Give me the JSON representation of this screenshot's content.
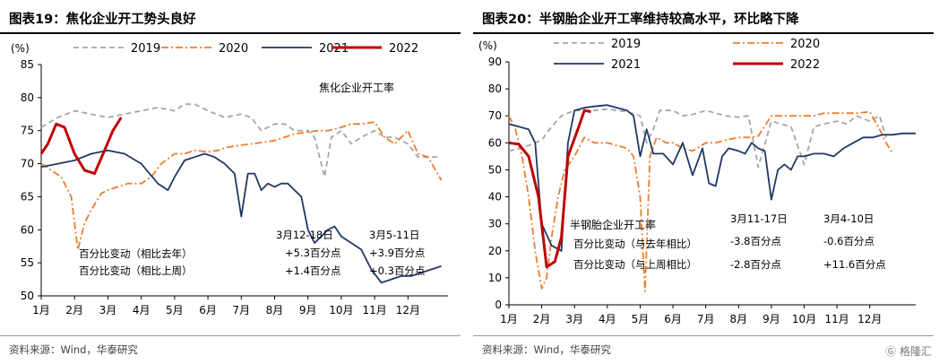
{
  "charts": [
    {
      "title": "图表19：焦化企业开工势头良好",
      "source": "资料来源：Wind，华泰研究",
      "chart_data": {
        "type": "line",
        "ylabel": "(%)",
        "ylim": [
          50,
          85
        ],
        "yticks": [
          "50",
          "55",
          "60",
          "65",
          "70",
          "75",
          "80",
          "85"
        ],
        "xlim": [
          1,
          13.2
        ],
        "xticks": [
          "1月",
          "2月",
          "3月",
          "4月",
          "5月",
          "6月",
          "7月",
          "8月",
          "9月",
          "10月",
          "11月",
          "12月"
        ],
        "grid": false,
        "legend_position": "top",
        "series": [
          {
            "name": "2019",
            "color": "#a6a6a6",
            "style": "dashed",
            "x": [
              1,
              1.5,
              2,
              2.5,
              3,
              3.5,
              4,
              4.5,
              5,
              5.3,
              5.6,
              6,
              6.5,
              7,
              7.3,
              7.6,
              8,
              8.3,
              8.6,
              9,
              9.2,
              9.5,
              9.7,
              10,
              10.3,
              10.6,
              11,
              11.3,
              11.6,
              12,
              12.3,
              12.6,
              12.9
            ],
            "y": [
              75.5,
              77,
              78,
              77.5,
              77,
              77.5,
              78,
              78.5,
              78,
              79,
              79,
              78,
              77,
              77.5,
              77,
              75,
              76,
              76,
              75,
              75,
              74,
              68,
              74,
              75,
              73,
              74,
              75,
              74,
              74,
              73,
              71,
              71,
              71
            ]
          },
          {
            "name": "2020",
            "color": "#ed7d31",
            "style": "dashdot",
            "x": [
              1,
              1.3,
              1.6,
              1.9,
              2.1,
              2.3,
              2.5,
              2.8,
              3,
              3.3,
              3.6,
              4,
              4.3,
              4.6,
              5,
              5.3,
              5.6,
              6,
              6.3,
              6.6,
              7,
              7.3,
              7.6,
              8,
              8.3,
              8.6,
              9,
              9.3,
              9.6,
              10,
              10.3,
              10.6,
              11,
              11.3,
              11.6,
              12,
              12.3,
              12.6,
              13
            ],
            "y": [
              70,
              69,
              68,
              65,
              57,
              61,
              63,
              65.5,
              66,
              66.5,
              67,
              67,
              68,
              70,
              71.5,
              71.5,
              72,
              71.8,
              72,
              72.5,
              72.8,
              73,
              73.2,
              73.5,
              74,
              74.5,
              74.8,
              75,
              75,
              75.5,
              76,
              76,
              76.3,
              74,
              73,
              75,
              71.5,
              71,
              67.5
            ]
          },
          {
            "name": "2021",
            "color": "#203864",
            "style": "solid",
            "x": [
              1,
              1.5,
              2,
              2.5,
              3,
              3.5,
              4,
              4.5,
              4.8,
              5,
              5.3,
              5.6,
              5.9,
              6.2,
              6.5,
              6.8,
              7,
              7.2,
              7.4,
              7.6,
              7.8,
              8,
              8.2,
              8.4,
              8.6,
              8.8,
              9,
              9.2,
              9.4,
              9.6,
              9.8,
              10,
              10.3,
              10.6,
              10.9,
              11.2,
              11.5,
              11.8,
              12.1,
              12.4,
              12.7,
              13
            ],
            "y": [
              69.5,
              70,
              70.5,
              71.5,
              72,
              71.5,
              70,
              67,
              66,
              68,
              70.5,
              71,
              71.5,
              71,
              70,
              68.5,
              62,
              68.5,
              68.5,
              66,
              67,
              66.5,
              67,
              67,
              66,
              65,
              60,
              58,
              59,
              60,
              60.5,
              59,
              58,
              57,
              54,
              52,
              52.5,
              53,
              53,
              53.5,
              54,
              54.5
            ]
          },
          {
            "name": "2022",
            "color": "#c00000",
            "style": "solid",
            "width": 3,
            "x": [
              1,
              1.2,
              1.45,
              1.7,
              2,
              2.3,
              2.6,
              2.9,
              3.15,
              3.4
            ],
            "y": [
              71.5,
              73,
              76,
              75.5,
              71.5,
              69,
              68.5,
              72,
              75,
              77
            ]
          }
        ],
        "annotations": {
          "series_label": "焦化企业开工率",
          "row_labels": [
            "百分比变动（相比去年）",
            "百分比变动（相比上周）"
          ],
          "col_headers": [
            "3月12-18日",
            "3月5-11日"
          ],
          "values": [
            [
              "+5.3百分点",
              "+3.9百分点"
            ],
            [
              "+1.4百分点",
              "+0.3百分点"
            ]
          ]
        }
      }
    },
    {
      "title": "图表20：半钢胎企业开工率维持较高水平，环比略下降",
      "source": "资料来源：Wind，华泰研究",
      "chart_data": {
        "type": "line",
        "ylabel": "(%)",
        "ylim": [
          0,
          90
        ],
        "yticks": [
          "0",
          "10",
          "20",
          "30",
          "40",
          "50",
          "60",
          "70",
          "80",
          "90"
        ],
        "xlim": [
          1,
          13.4
        ],
        "xticks": [
          "1月",
          "2月",
          "3月",
          "4月",
          "5月",
          "6月",
          "7月",
          "8月",
          "9月",
          "10月",
          "11月",
          "12月"
        ],
        "grid": false,
        "legend_position": "top",
        "series": [
          {
            "name": "2019",
            "color": "#a6a6a6",
            "style": "dashed",
            "x": [
              1,
              1.3,
              1.6,
              2,
              2.3,
              2.6,
              3,
              3.3,
              3.6,
              4,
              4.3,
              4.6,
              5,
              5.2,
              5.4,
              5.6,
              6,
              6.3,
              6.6,
              7,
              7.3,
              7.6,
              8,
              8.3,
              8.6,
              9,
              9.3,
              9.6,
              10,
              10.3,
              10.6,
              11,
              11.3,
              11.6,
              12,
              12.3,
              12.5
            ],
            "y": [
              57,
              58,
              59,
              61,
              66,
              70,
              72,
              72,
              72,
              72.5,
              72,
              71.5,
              70,
              60,
              65,
              72,
              72,
              70,
              70.5,
              72,
              71,
              70,
              69.5,
              70,
              51,
              68,
              67,
              66,
              52,
              66,
              67,
              68,
              67,
              70,
              68,
              70,
              62
            ]
          },
          {
            "name": "2020",
            "color": "#ed7d31",
            "style": "dashdot",
            "x": [
              1,
              1.2,
              1.4,
              1.6,
              1.8,
              2,
              2.15,
              2.3,
              2.5,
              2.7,
              3,
              3.3,
              3.6,
              4,
              4.3,
              4.6,
              4.8,
              5,
              5.15,
              5.3,
              5.5,
              5.8,
              6,
              6.3,
              6.6,
              7,
              7.3,
              7.6,
              8,
              8.3,
              8.6,
              9,
              9.3,
              9.6,
              10,
              10.3,
              10.6,
              11,
              11.3,
              11.6,
              12,
              12.3,
              12.5,
              12.7
            ],
            "y": [
              70,
              65,
              55,
              40,
              20,
              6,
              10,
              25,
              40,
              50,
              55,
              62,
              60,
              60,
              59,
              58,
              55,
              40,
              5,
              55,
              62,
              60,
              60,
              58,
              57,
              60,
              60,
              61,
              62,
              62,
              62.5,
              70,
              70,
              70,
              70,
              70,
              71,
              71,
              71,
              71,
              71.5,
              65,
              60,
              56
            ]
          },
          {
            "name": "2021",
            "color": "#203864",
            "style": "solid",
            "x": [
              1,
              1.3,
              1.6,
              1.8,
              2,
              2.3,
              2.6,
              2.8,
              3,
              3.3,
              3.6,
              4,
              4.3,
              4.6,
              4.8,
              5,
              5.1,
              5.2,
              5.4,
              5.7,
              6,
              6.3,
              6.6,
              6.9,
              7.1,
              7.3,
              7.5,
              7.7,
              8,
              8.2,
              8.4,
              8.6,
              8.8,
              9,
              9.2,
              9.4,
              9.6,
              9.8,
              10,
              10.3,
              10.6,
              10.9,
              11.2,
              11.5,
              11.8,
              12.1,
              12.4,
              12.7,
              13,
              13.4
            ],
            "y": [
              67,
              66,
              65,
              60,
              30,
              22,
              20,
              60,
              72,
              73,
              73.5,
              74,
              73,
              72,
              70,
              55,
              60,
              65,
              56,
              56,
              52,
              60,
              48,
              58,
              45,
              44,
              55,
              58,
              57,
              56,
              60,
              58,
              57,
              39,
              50,
              52,
              50,
              55,
              55,
              56,
              56,
              55,
              58,
              60,
              62,
              62,
              63,
              63,
              63.5,
              63.5
            ]
          },
          {
            "name": "2022",
            "color": "#c00000",
            "style": "solid",
            "width": 3,
            "x": [
              1,
              1.3,
              1.6,
              1.9,
              2.15,
              2.4,
              2.6,
              2.8,
              3.1,
              3.3,
              3.5
            ],
            "y": [
              60,
              59.5,
              55,
              40,
              14,
              16,
              25,
              55,
              65,
              72,
              71.5
            ]
          }
        ],
        "annotations": {
          "series_label": "半钢胎企业开工率",
          "row_labels": [
            "百分比变动（与去年相比）",
            "百分比变动（与上周相比）"
          ],
          "col_headers": [
            "3月11-17日",
            "3月4-10日"
          ],
          "values": [
            [
              "-3.8百分点",
              "-0.6百分点"
            ],
            [
              "-2.8百分点",
              "+11.6百分点"
            ]
          ]
        }
      }
    }
  ],
  "watermark": "格隆汇"
}
